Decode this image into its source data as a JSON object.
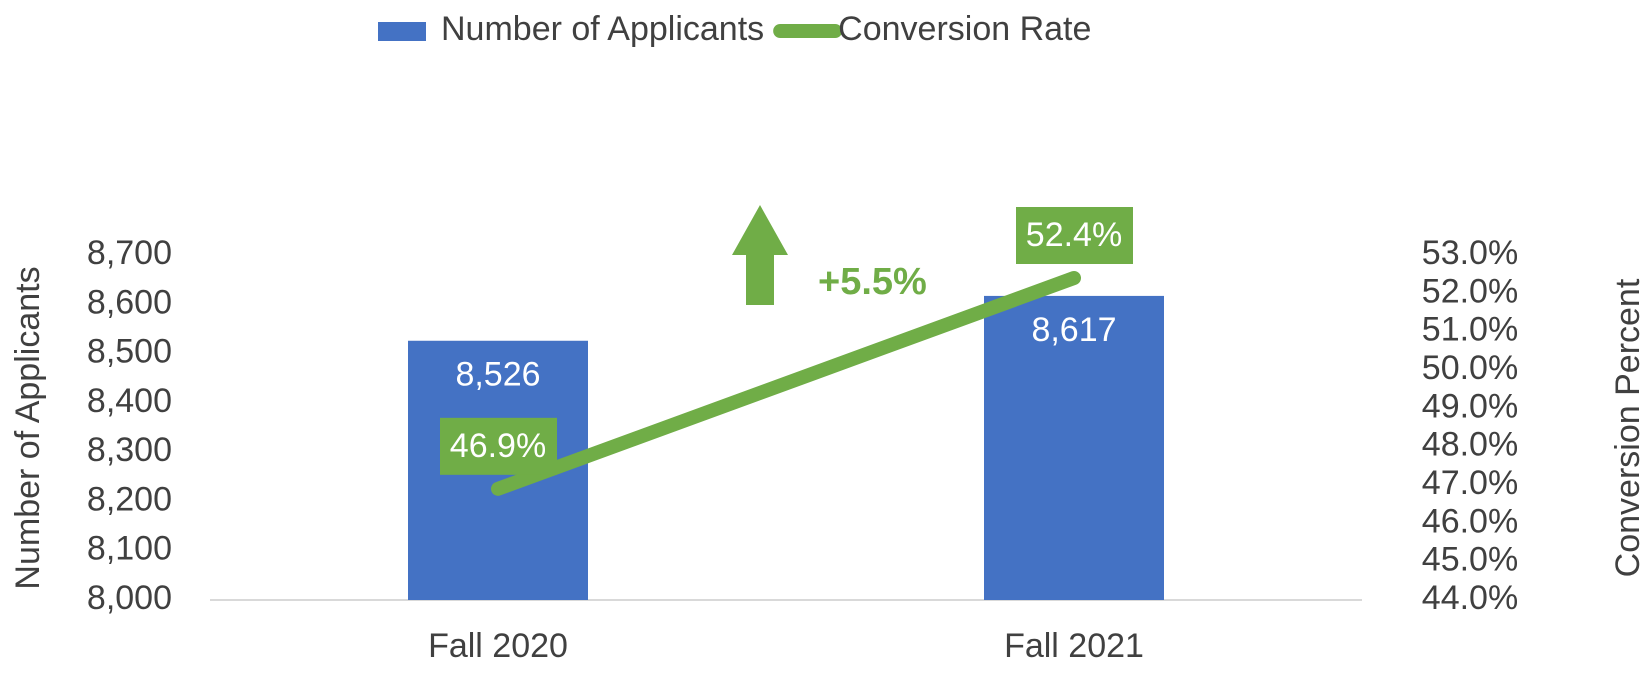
{
  "chart_data": {
    "type": "bar-line",
    "categories": [
      "Fall 2020",
      "Fall 2021"
    ],
    "series": [
      {
        "name": "Number of Applicants",
        "type": "bar",
        "color": "#4472c4",
        "values": [
          8526,
          8617
        ],
        "value_labels": [
          "8,526",
          "8,617"
        ]
      },
      {
        "name": "Conversion Rate",
        "type": "line",
        "axis": "y2",
        "color": "#70ad47",
        "values": [
          46.9,
          52.4
        ],
        "value_labels": [
          "46.9%",
          "52.4%"
        ]
      }
    ],
    "ylabel": "Number of Applicants",
    "y2label": "Conversion Percent",
    "ylim": [
      8000,
      8700
    ],
    "yticks": [
      {
        "value": 8000,
        "label": "8,000"
      },
      {
        "value": 8100,
        "label": "8,100"
      },
      {
        "value": 8200,
        "label": "8,200"
      },
      {
        "value": 8300,
        "label": "8,300"
      },
      {
        "value": 8400,
        "label": "8,400"
      },
      {
        "value": 8500,
        "label": "8,500"
      },
      {
        "value": 8600,
        "label": "8,600"
      },
      {
        "value": 8700,
        "label": "8,700"
      }
    ],
    "y2lim": [
      44,
      53
    ],
    "y2ticks": [
      {
        "value": 44,
        "label": "44.0%"
      },
      {
        "value": 45,
        "label": "45.0%"
      },
      {
        "value": 46,
        "label": "46.0%"
      },
      {
        "value": 47,
        "label": "47.0%"
      },
      {
        "value": 48,
        "label": "48.0%"
      },
      {
        "value": 49,
        "label": "49.0%"
      },
      {
        "value": 50,
        "label": "50.0%"
      },
      {
        "value": 51,
        "label": "51.0%"
      },
      {
        "value": 52,
        "label": "52.0%"
      },
      {
        "value": 53,
        "label": "53.0%"
      }
    ],
    "annotation": "+5.5%",
    "legend": "top",
    "grid": false
  }
}
